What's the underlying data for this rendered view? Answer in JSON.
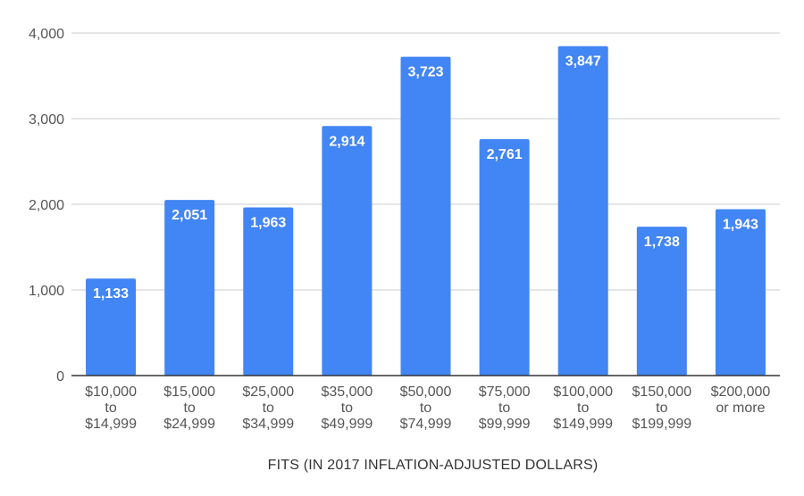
{
  "chart_data": {
    "type": "bar",
    "categories": [
      [
        "$10,000",
        "to",
        "$14,999"
      ],
      [
        "$15,000",
        "to",
        "$24,999"
      ],
      [
        "$25,000",
        "to",
        "$34,999"
      ],
      [
        "$35,000",
        "to",
        "$49,999"
      ],
      [
        "$50,000",
        "to",
        "$74,999"
      ],
      [
        "$75,000",
        "to",
        "$99,999"
      ],
      [
        "$100,000",
        "to",
        "$149,999"
      ],
      [
        "$150,000",
        "to",
        "$199,999"
      ],
      [
        "$200,000",
        "or more"
      ]
    ],
    "values": [
      1133,
      2051,
      1963,
      2914,
      3723,
      2761,
      3847,
      1738,
      1943
    ],
    "data_labels": [
      "1,133",
      "2,051",
      "1,963",
      "2,914",
      "3,723",
      "2,761",
      "3,847",
      "1,738",
      "1,943"
    ],
    "yticks": [
      0,
      1000,
      2000,
      3000,
      4000
    ],
    "ytick_labels": [
      "0",
      "1,000",
      "2,000",
      "3,000",
      "4,000"
    ],
    "ylim": [
      0,
      4000
    ],
    "xlabel": "FITS (IN 2017 INFLATION-ADJUSTED DOLLARS)",
    "ylabel": "",
    "title": "",
    "grid": true,
    "legend": "none",
    "colors": {
      "bar": "#4285f4",
      "grid": "#cccccc",
      "baseline": "#333333",
      "label_text": "#ffffff"
    }
  }
}
